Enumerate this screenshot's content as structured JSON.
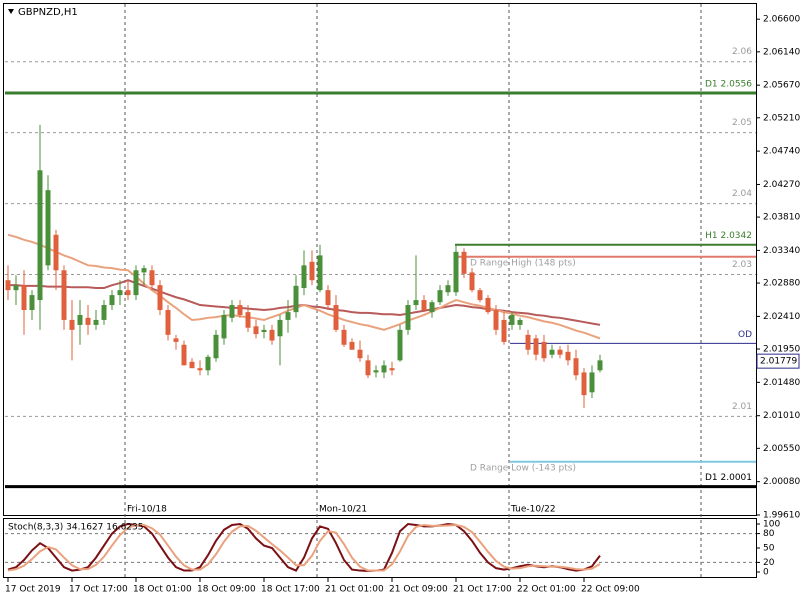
{
  "chart_data": [
    {
      "type": "candlestick",
      "title": "GBPNZD,H1",
      "categories": [
        "17 Oct 2019",
        null,
        null,
        null,
        null,
        null,
        null,
        null,
        "17 Oct 17:00",
        null,
        null,
        null,
        null,
        null,
        null,
        null,
        "18 Oct 01:00",
        null,
        null,
        null,
        null,
        null,
        null,
        null,
        "18 Oct 09:00",
        null,
        null,
        null,
        null,
        null,
        null,
        null,
        "18 Oct 17:00",
        null,
        null,
        null,
        null,
        null,
        null,
        null,
        "21 Oct 01:00",
        null,
        null,
        null,
        null,
        null,
        null,
        null,
        "21 Oct 09:00",
        null,
        null,
        null,
        null,
        null,
        null,
        null,
        "21 Oct 17:00",
        null,
        null,
        null,
        null,
        null,
        null,
        null,
        "22 Oct 01:00",
        null,
        null,
        null,
        null,
        null,
        null,
        null,
        "22 Oct 09:00",
        null,
        null
      ],
      "open": [
        2.0292,
        2.0278,
        2.0285,
        2.025,
        2.0264,
        2.0313,
        2.0356,
        2.0306,
        2.0236,
        2.0229,
        2.0239,
        2.0229,
        2.0236,
        2.0257,
        2.0271,
        2.0278,
        2.0271,
        2.0303,
        2.0306,
        2.0285,
        2.025,
        2.021,
        2.0201,
        2.0177,
        2.0168,
        2.0165,
        2.0182,
        2.021,
        2.0239,
        2.0257,
        2.0247,
        2.0227,
        2.0219,
        2.0222,
        2.0213,
        2.0236,
        2.0247,
        2.0281,
        2.0318,
        2.0278,
        2.0278,
        2.0257,
        2.0222,
        2.0205,
        2.0194,
        2.0179,
        2.0162,
        2.0162,
        2.0168,
        2.0179,
        2.0222,
        2.0257,
        2.0264,
        2.0247,
        2.0261,
        2.0275,
        2.0275,
        2.0332,
        2.0303,
        2.0278,
        2.0267,
        2.025,
        2.0236,
        2.0229,
        2.0229,
        2.0215,
        2.021,
        2.0205,
        2.0187,
        2.0194,
        2.0191,
        2.0182,
        2.0162,
        2.0134,
        2.0165
      ],
      "high": [
        2.0313,
        2.0299,
        2.0306,
        2.0278,
        2.0511,
        2.044,
        2.0363,
        2.0313,
        2.0264,
        2.0264,
        2.0257,
        2.025,
        2.0264,
        2.0278,
        2.0292,
        2.0292,
        2.0313,
        2.0313,
        2.0313,
        2.0292,
        2.0257,
        2.0215,
        2.0207,
        2.0182,
        2.0179,
        2.0187,
        2.0222,
        2.025,
        2.0264,
        2.0264,
        2.0257,
        2.0236,
        2.0229,
        2.0229,
        2.0243,
        2.0264,
        2.0299,
        2.0334,
        2.0334,
        2.0342,
        2.0285,
        2.0271,
        2.0229,
        2.021,
        2.0207,
        2.0187,
        2.0172,
        2.0179,
        2.0177,
        2.0229,
        2.0264,
        2.0327,
        2.0271,
        2.0264,
        2.0285,
        2.0292,
        2.0342,
        2.0337,
        2.0309,
        2.0281,
        2.0271,
        2.0257,
        2.0247,
        2.0247,
        2.0239,
        2.0222,
        2.0215,
        2.0215,
        2.0201,
        2.0199,
        2.0201,
        2.0194,
        2.0168,
        2.0172,
        2.0187
      ],
      "low": [
        2.0264,
        2.0257,
        2.0215,
        2.0236,
        2.0222,
        2.0306,
        2.0278,
        2.0222,
        2.0179,
        2.0201,
        2.0215,
        2.0222,
        2.0229,
        2.025,
        2.0257,
        2.0264,
        2.0264,
        2.0285,
        2.0278,
        2.0243,
        2.0207,
        2.0194,
        2.0172,
        2.0168,
        2.0158,
        2.0158,
        2.0177,
        2.0201,
        2.0233,
        2.0239,
        2.0219,
        2.021,
        2.021,
        2.0201,
        2.0172,
        2.0218,
        2.0239,
        2.0271,
        2.0285,
        2.0275,
        2.025,
        2.0219,
        2.0198,
        2.0194,
        2.0177,
        2.0154,
        2.0155,
        2.0154,
        2.0158,
        2.0177,
        2.0215,
        2.025,
        2.0247,
        2.0239,
        2.0257,
        2.027,
        2.027,
        2.0295,
        2.0275,
        2.0261,
        2.0244,
        2.0215,
        2.0201,
        2.0222,
        2.0222,
        2.0187,
        2.0179,
        2.0177,
        2.0182,
        2.0182,
        2.0172,
        2.0151,
        2.0112,
        2.0126,
        2.0162
      ],
      "close": [
        2.0278,
        2.0285,
        2.025,
        2.0271,
        2.0447,
        2.0419,
        2.0306,
        2.0236,
        2.0222,
        2.0243,
        2.0229,
        2.0236,
        2.0257,
        2.0271,
        2.0278,
        2.0271,
        2.0306,
        2.0309,
        2.0285,
        2.025,
        2.0215,
        2.0205,
        2.0172,
        2.0168,
        2.0165,
        2.0184,
        2.0215,
        2.0243,
        2.0257,
        2.0243,
        2.0225,
        2.0216,
        2.0222,
        2.0207,
        2.0236,
        2.0247,
        2.0284,
        2.0313,
        2.0292,
        2.0327,
        2.0257,
        2.0222,
        2.0201,
        2.0194,
        2.0182,
        2.0158,
        2.0165,
        2.0172,
        2.0165,
        2.0222,
        2.0257,
        2.0264,
        2.025,
        2.0261,
        2.0278,
        2.0285,
        2.0332,
        2.0301,
        2.0278,
        2.0264,
        2.0247,
        2.0222,
        2.0205,
        2.0243,
        2.0236,
        2.0194,
        2.0187,
        2.0182,
        2.0194,
        2.0187,
        2.0179,
        2.0158,
        2.013,
        2.0162,
        2.0179
      ],
      "up_color": "#4a8f3a",
      "down_color": "#e0603e",
      "series": [
        {
          "color": "#b85a5a",
          "values": [
            2.0285,
            2.0285,
            2.0284,
            2.0284,
            2.0284,
            2.0283,
            2.0283,
            2.0283,
            2.0282,
            2.0282,
            2.0282,
            2.0281,
            2.0281,
            2.0285,
            2.0288,
            2.0292,
            2.0288,
            2.0284,
            2.028,
            2.0276,
            2.0272,
            2.0268,
            2.0265,
            2.0261,
            2.0257,
            2.0256,
            2.0255,
            2.0254,
            2.0253,
            2.0253,
            2.0252,
            2.0251,
            2.025,
            2.0251,
            2.0253,
            2.0254,
            2.0256,
            2.0257,
            2.0255,
            2.0254,
            2.0252,
            2.025,
            2.0249,
            2.0247,
            2.0246,
            2.0246,
            2.0245,
            2.0244,
            2.0244,
            2.0243,
            2.0245,
            2.0247,
            2.0249,
            2.0251,
            2.0253,
            2.0255,
            2.0257,
            2.0256,
            2.0254,
            2.0253,
            2.0251,
            2.025,
            2.0249,
            2.0247,
            2.0246,
            2.0245,
            2.0243,
            2.0242,
            2.024,
            2.0239,
            2.0237,
            2.0235,
            2.0233,
            2.0231,
            2.0229
          ]
        },
        {
          "color": "#eaa27e",
          "values": [
            2.0356,
            2.0353,
            2.0349,
            2.0346,
            2.0342,
            2.0337,
            2.0332,
            2.0327,
            2.0323,
            2.0318,
            2.0313,
            2.0312,
            2.031,
            2.0309,
            2.0307,
            2.0306,
            2.0297,
            2.0287,
            2.0278,
            2.027,
            2.0261,
            2.0253,
            2.0244,
            2.0236,
            2.0237,
            2.0239,
            2.024,
            2.0242,
            2.0243,
            2.0241,
            2.024,
            2.0238,
            2.0236,
            2.024,
            2.0244,
            2.0249,
            2.0253,
            2.0257,
            2.0253,
            2.0249,
            2.0244,
            2.024,
            2.0236,
            2.0233,
            2.023,
            2.0228,
            2.0225,
            2.0222,
            2.0226,
            2.023,
            2.0235,
            2.0239,
            2.0243,
            2.0248,
            2.0253,
            2.0259,
            2.0264,
            2.0261,
            2.0258,
            2.0256,
            2.0253,
            2.025,
            2.0247,
            2.0245,
            2.0242,
            2.024,
            2.0237,
            2.0234,
            2.0232,
            2.0229,
            2.0225,
            2.0221,
            2.0218,
            2.0214,
            2.021
          ]
        }
      ],
      "ylim": [
        1.9961,
        2.068
      ],
      "yticks": [
        {
          "value": 2.066,
          "label": "2.06600"
        },
        {
          "value": 2.0614,
          "label": "2.06140"
        },
        {
          "value": 2.0567,
          "label": "2.05670"
        },
        {
          "value": 2.0521,
          "label": "2.05210"
        },
        {
          "value": 2.0474,
          "label": "2.04740"
        },
        {
          "value": 2.0427,
          "label": "2.04270"
        },
        {
          "value": 2.0381,
          "label": "2.03810"
        },
        {
          "value": 2.0334,
          "label": "2.03340"
        },
        {
          "value": 2.0288,
          "label": "2.02880"
        },
        {
          "value": 2.0241,
          "label": "2.02410"
        },
        {
          "value": 2.0195,
          "label": "2.01950"
        },
        {
          "value": 2.0148,
          "label": "2.01480"
        },
        {
          "value": 2.0101,
          "label": "2.01010"
        },
        {
          "value": 2.0055,
          "label": "2.00550"
        },
        {
          "value": 2.0008,
          "label": "2.00080"
        },
        {
          "value": 1.9961,
          "label": "1.99610"
        }
      ],
      "round_levels": [
        2.06,
        2.05,
        2.04,
        2.03,
        2.01
      ],
      "round_level_color": "#9a9a9a",
      "lines": [
        {
          "label": "D1 2.0556",
          "value": 2.0556,
          "color": "#3a7d2c",
          "label_color": "#3a7d2c",
          "width": 3,
          "label_align": "end"
        },
        {
          "label": "H1 2.0342",
          "value": 2.0342,
          "color": "#3a7d2c",
          "label_color": "#3a7d2c",
          "width": 2,
          "label_align": "end"
        },
        {
          "label": "D Range High (148 pts)",
          "value": 2.0325,
          "color": "#e07a6a",
          "label_color": "#a0a0a0",
          "width": 2,
          "label_align": "start"
        },
        {
          "label": "OD",
          "value": 2.0203,
          "color": "#2c2c8c",
          "label_color": "#2c2c8c",
          "width": 1,
          "label_align": "end"
        },
        {
          "label": "D Range Low (-143 pts)",
          "value": 2.0036,
          "color": "#7ec8e3",
          "label_color": "#a0a0a0",
          "width": 2,
          "label_align": "start"
        },
        {
          "label": "D1 2.0001",
          "value": 2.0001,
          "color": "#000000",
          "label_color": "#000000",
          "width": 3,
          "label_align": "end"
        }
      ],
      "last_price": 2.01779,
      "separators": [
        "Fri-10/18",
        "Mon-10/21",
        "Tue-10/22"
      ]
    },
    {
      "type": "line",
      "title": "Stoch(8,3,3) 34.1627 16.6235",
      "series": [
        {
          "color": "#7a0f14",
          "values": [
            5,
            10,
            25,
            45,
            60,
            50,
            30,
            10,
            3,
            5,
            10,
            30,
            55,
            80,
            95,
            100,
            98,
            95,
            80,
            55,
            30,
            10,
            3,
            3,
            10,
            35,
            65,
            88,
            98,
            100,
            90,
            70,
            55,
            50,
            30,
            10,
            3,
            30,
            70,
            95,
            90,
            60,
            25,
            5,
            3,
            2,
            3,
            5,
            40,
            85,
            100,
            98,
            95,
            95,
            97,
            100,
            98,
            85,
            65,
            40,
            20,
            8,
            5,
            8,
            12,
            15,
            12,
            10,
            12,
            10,
            6,
            3,
            5,
            12,
            34.1627
          ]
        },
        {
          "color": "#eaa27e",
          "values": [
            3,
            6,
            13,
            27,
            43,
            52,
            47,
            30,
            14,
            6,
            6,
            15,
            32,
            55,
            77,
            92,
            98,
            98,
            91,
            78,
            55,
            32,
            14,
            5,
            5,
            16,
            37,
            63,
            84,
            95,
            96,
            86,
            72,
            58,
            45,
            30,
            14,
            14,
            34,
            65,
            85,
            82,
            58,
            30,
            11,
            3,
            3,
            3,
            16,
            43,
            75,
            94,
            98,
            96,
            96,
            97,
            98,
            94,
            83,
            63,
            42,
            23,
            11,
            7,
            8,
            12,
            13,
            12,
            11,
            11,
            9,
            6,
            5,
            7,
            16.6235
          ]
        }
      ],
      "ylim": [
        0,
        100
      ],
      "yticks": [
        0,
        20,
        50,
        80,
        100
      ],
      "levels": [
        20,
        80
      ]
    }
  ]
}
